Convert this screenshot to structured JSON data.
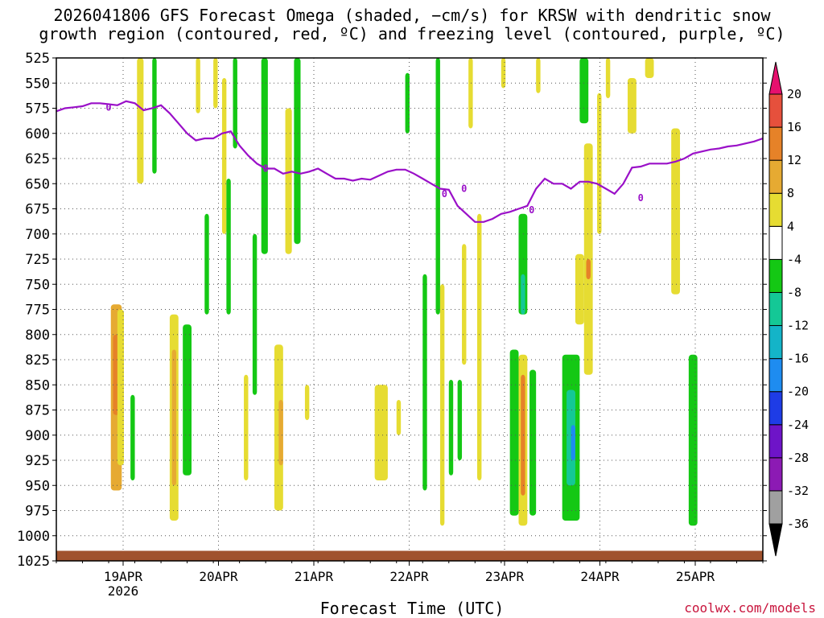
{
  "title": {
    "line1": "2026041806 GFS Forecast Omega (shaded, −cm/s) for KRSW with dendritic snow",
    "line2": "growth region (contoured, red, ºC) and freezing level (contoured, purple, ºC)"
  },
  "xlabel": "Forecast Time (UTC)",
  "credit": "coolwx.com/models",
  "chart_data": {
    "type": "heatmap",
    "title": "2026041806 GFS Forecast Omega (shaded, −cm/s) for KRSW with dendritic snow growth region (contoured, red, ºC) and freezing level (contoured, purple, ºC)",
    "xlabel": "Forecast Time (UTC)",
    "ylabel": "",
    "x_ticks": [
      "19APR",
      "20APR",
      "21APR",
      "22APR",
      "23APR",
      "24APR",
      "25APR"
    ],
    "x_year_label": "2026",
    "xlim_hours_from_18Apr06Z": [
      0,
      162
    ],
    "y_ticks": [
      525,
      550,
      575,
      600,
      625,
      650,
      675,
      700,
      725,
      750,
      775,
      800,
      825,
      850,
      875,
      900,
      925,
      950,
      975,
      1000,
      1025
    ],
    "ylim_hpa": [
      525,
      1025
    ],
    "colorbar_levels": [
      -36,
      -32,
      -28,
      -24,
      -20,
      -16,
      -12,
      -8,
      -4,
      4,
      8,
      12,
      16,
      20
    ],
    "colorbar_colors": [
      "#a0a0a0",
      "#8c1ab4",
      "#6e14c8",
      "#1e3ce6",
      "#1e8cf0",
      "#14b4c8",
      "#14c896",
      "#14c814",
      "#ffffff",
      "#e6dc32",
      "#e6aa32",
      "#e68228",
      "#e6503c",
      "#e61e5a"
    ],
    "freezing_level_label": "0",
    "freezing_level": {
      "x_hours": [
        0,
        2,
        4,
        6,
        8,
        10,
        12,
        14,
        16,
        18,
        20,
        22,
        24,
        26,
        28,
        30,
        32,
        34,
        36,
        38,
        40,
        42,
        44,
        46,
        48,
        50,
        52,
        54,
        56,
        58,
        60,
        62,
        64,
        66,
        68,
        70,
        72,
        74,
        76,
        78,
        80,
        82,
        84,
        86,
        88,
        90,
        92,
        94,
        96,
        98,
        100,
        102,
        104,
        106,
        108,
        110,
        112,
        114,
        116,
        118,
        120,
        122,
        124,
        126,
        128,
        130,
        132,
        134,
        136,
        138,
        140,
        142,
        144,
        146,
        148,
        150,
        152,
        154,
        156,
        158,
        160,
        162
      ],
      "pressure_hpa": [
        578,
        575,
        574,
        573,
        570,
        570,
        571,
        572,
        568,
        570,
        577,
        575,
        572,
        580,
        590,
        600,
        607,
        605,
        605,
        600,
        598,
        612,
        622,
        630,
        635,
        635,
        640,
        638,
        640,
        638,
        635,
        640,
        645,
        645,
        647,
        645,
        646,
        642,
        638,
        636,
        636,
        640,
        645,
        650,
        655,
        656,
        672,
        680,
        688,
        688,
        685,
        680,
        678,
        675,
        672,
        655,
        645,
        650,
        650,
        655,
        648,
        648,
        650,
        655,
        660,
        650,
        634,
        633,
        630,
        630,
        630,
        628,
        625,
        620,
        618,
        616,
        615,
        613,
        612,
        610,
        608,
        605
      ]
    },
    "omega_cells": [
      {
        "x": [
          12.5,
          15
        ],
        "p": [
          770,
          955
        ],
        "v": 8
      },
      {
        "x": [
          13,
          14.5
        ],
        "p": [
          800,
          880
        ],
        "v": 12
      },
      {
        "x": [
          14,
          15.5
        ],
        "p": [
          775,
          930
        ],
        "v": 4
      },
      {
        "x": [
          17,
          18
        ],
        "p": [
          860,
          945
        ],
        "v": -8
      },
      {
        "x": [
          18.5,
          20
        ],
        "p": [
          525,
          650
        ],
        "v": 4
      },
      {
        "x": [
          22,
          23
        ],
        "p": [
          525,
          640
        ],
        "v": -8
      },
      {
        "x": [
          26,
          28
        ],
        "p": [
          780,
          985
        ],
        "v": 4
      },
      {
        "x": [
          26.5,
          27.5
        ],
        "p": [
          815,
          950
        ],
        "v": 8
      },
      {
        "x": [
          29,
          31
        ],
        "p": [
          790,
          940
        ],
        "v": -8
      },
      {
        "x": [
          32,
          33
        ],
        "p": [
          525,
          580
        ],
        "v": 4
      },
      {
        "x": [
          34,
          35
        ],
        "p": [
          680,
          780
        ],
        "v": -8
      },
      {
        "x": [
          36,
          37
        ],
        "p": [
          525,
          575
        ],
        "v": 4
      },
      {
        "x": [
          38,
          39
        ],
        "p": [
          545,
          700
        ],
        "v": 4
      },
      {
        "x": [
          39,
          40
        ],
        "p": [
          645,
          780
        ],
        "v": -8
      },
      {
        "x": [
          40.5,
          41.5
        ],
        "p": [
          525,
          615
        ],
        "v": -8
      },
      {
        "x": [
          43,
          44
        ],
        "p": [
          840,
          945
        ],
        "v": 4
      },
      {
        "x": [
          45,
          46
        ],
        "p": [
          700,
          860
        ],
        "v": -8
      },
      {
        "x": [
          47,
          48.5
        ],
        "p": [
          525,
          720
        ],
        "v": -8
      },
      {
        "x": [
          50,
          52
        ],
        "p": [
          810,
          975
        ],
        "v": 4
      },
      {
        "x": [
          51,
          52
        ],
        "p": [
          865,
          930
        ],
        "v": 8
      },
      {
        "x": [
          52.5,
          54
        ],
        "p": [
          575,
          720
        ],
        "v": 4
      },
      {
        "x": [
          54.5,
          56
        ],
        "p": [
          525,
          710
        ],
        "v": -8
      },
      {
        "x": [
          57,
          58
        ],
        "p": [
          850,
          885
        ],
        "v": 4
      },
      {
        "x": [
          73,
          76
        ],
        "p": [
          850,
          945
        ],
        "v": 4
      },
      {
        "x": [
          78,
          79
        ],
        "p": [
          865,
          900
        ],
        "v": 4
      },
      {
        "x": [
          80,
          81
        ],
        "p": [
          540,
          600
        ],
        "v": -8
      },
      {
        "x": [
          84,
          85
        ],
        "p": [
          740,
          955
        ],
        "v": -8
      },
      {
        "x": [
          87,
          88
        ],
        "p": [
          525,
          780
        ],
        "v": -8
      },
      {
        "x": [
          88,
          89
        ],
        "p": [
          750,
          990
        ],
        "v": 4
      },
      {
        "x": [
          90,
          91
        ],
        "p": [
          845,
          940
        ],
        "v": -8
      },
      {
        "x": [
          92,
          93
        ],
        "p": [
          845,
          925
        ],
        "v": -8
      },
      {
        "x": [
          93,
          94
        ],
        "p": [
          710,
          830
        ],
        "v": 4
      },
      {
        "x": [
          94.5,
          95.5
        ],
        "p": [
          525,
          595
        ],
        "v": 4
      },
      {
        "x": [
          96.5,
          97.5
        ],
        "p": [
          680,
          945
        ],
        "v": 4
      },
      {
        "x": [
          102,
          103
        ],
        "p": [
          525,
          555
        ],
        "v": 4
      },
      {
        "x": [
          104,
          106
        ],
        "p": [
          815,
          980
        ],
        "v": -8
      },
      {
        "x": [
          106,
          108
        ],
        "p": [
          680,
          780
        ],
        "v": -8
      },
      {
        "x": [
          106.5,
          107.5
        ],
        "p": [
          740,
          780
        ],
        "v": -12
      },
      {
        "x": [
          106,
          108
        ],
        "p": [
          820,
          990
        ],
        "v": 4
      },
      {
        "x": [
          106.5,
          107.5
        ],
        "p": [
          840,
          960
        ],
        "v": 12
      },
      {
        "x": [
          108.5,
          110
        ],
        "p": [
          835,
          980
        ],
        "v": -8
      },
      {
        "x": [
          110,
          111
        ],
        "p": [
          525,
          560
        ],
        "v": 4
      },
      {
        "x": [
          116,
          120
        ],
        "p": [
          820,
          985
        ],
        "v": -8
      },
      {
        "x": [
          117,
          119
        ],
        "p": [
          855,
          950
        ],
        "v": -12
      },
      {
        "x": [
          118,
          119
        ],
        "p": [
          890,
          925
        ],
        "v": -20
      },
      {
        "x": [
          119,
          121
        ],
        "p": [
          720,
          790
        ],
        "v": 4
      },
      {
        "x": [
          120,
          122
        ],
        "p": [
          525,
          590
        ],
        "v": -8
      },
      {
        "x": [
          121,
          123
        ],
        "p": [
          610,
          840
        ],
        "v": 4
      },
      {
        "x": [
          121.5,
          122.5
        ],
        "p": [
          725,
          745
        ],
        "v": 12
      },
      {
        "x": [
          124,
          125
        ],
        "p": [
          560,
          700
        ],
        "v": 4
      },
      {
        "x": [
          126,
          127
        ],
        "p": [
          525,
          565
        ],
        "v": 4
      },
      {
        "x": [
          131,
          133
        ],
        "p": [
          545,
          600
        ],
        "v": 4
      },
      {
        "x": [
          135,
          137
        ],
        "p": [
          525,
          545
        ],
        "v": 4
      },
      {
        "x": [
          141,
          143
        ],
        "p": [
          595,
          760
        ],
        "v": 4
      },
      {
        "x": [
          145,
          147
        ],
        "p": [
          820,
          990
        ],
        "v": -8
      }
    ]
  }
}
